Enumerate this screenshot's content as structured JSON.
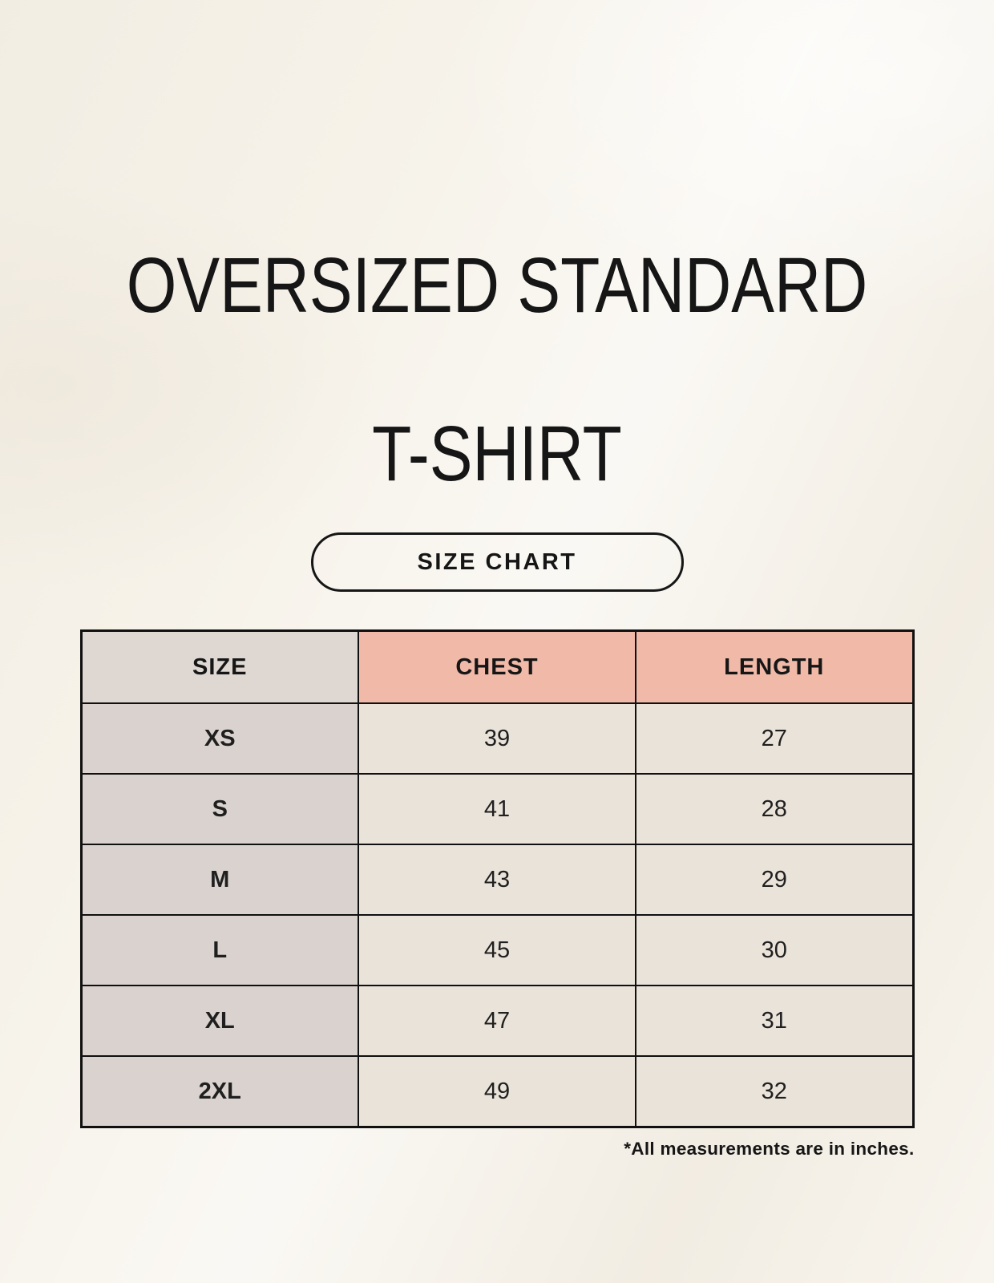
{
  "page": {
    "title_line1": "OVERSIZED STANDARD",
    "title_line2": "T-SHIRT",
    "badge_label": "SIZE CHART",
    "footnote": "*All measurements are in inches."
  },
  "colors": {
    "background": "#f6f2e9",
    "size_header_bg": "#ded7d2",
    "measure_header_bg": "#f0b9a8",
    "size_column_bg": "#d9d2ce",
    "data_cell_bg": "#eae3da",
    "table_border": "#101010",
    "text": "#161616"
  },
  "chart_data": {
    "type": "table",
    "title": "OVERSIZED STANDARD T-SHIRT",
    "subtitle": "SIZE CHART",
    "units": "inches",
    "columns": [
      "SIZE",
      "CHEST",
      "LENGTH"
    ],
    "rows": [
      [
        "XS",
        39,
        27
      ],
      [
        "S",
        41,
        28
      ],
      [
        "M",
        43,
        29
      ],
      [
        "L",
        45,
        30
      ],
      [
        "XL",
        47,
        31
      ],
      [
        "2XL",
        49,
        32
      ]
    ],
    "note": "*All measurements are in inches."
  }
}
